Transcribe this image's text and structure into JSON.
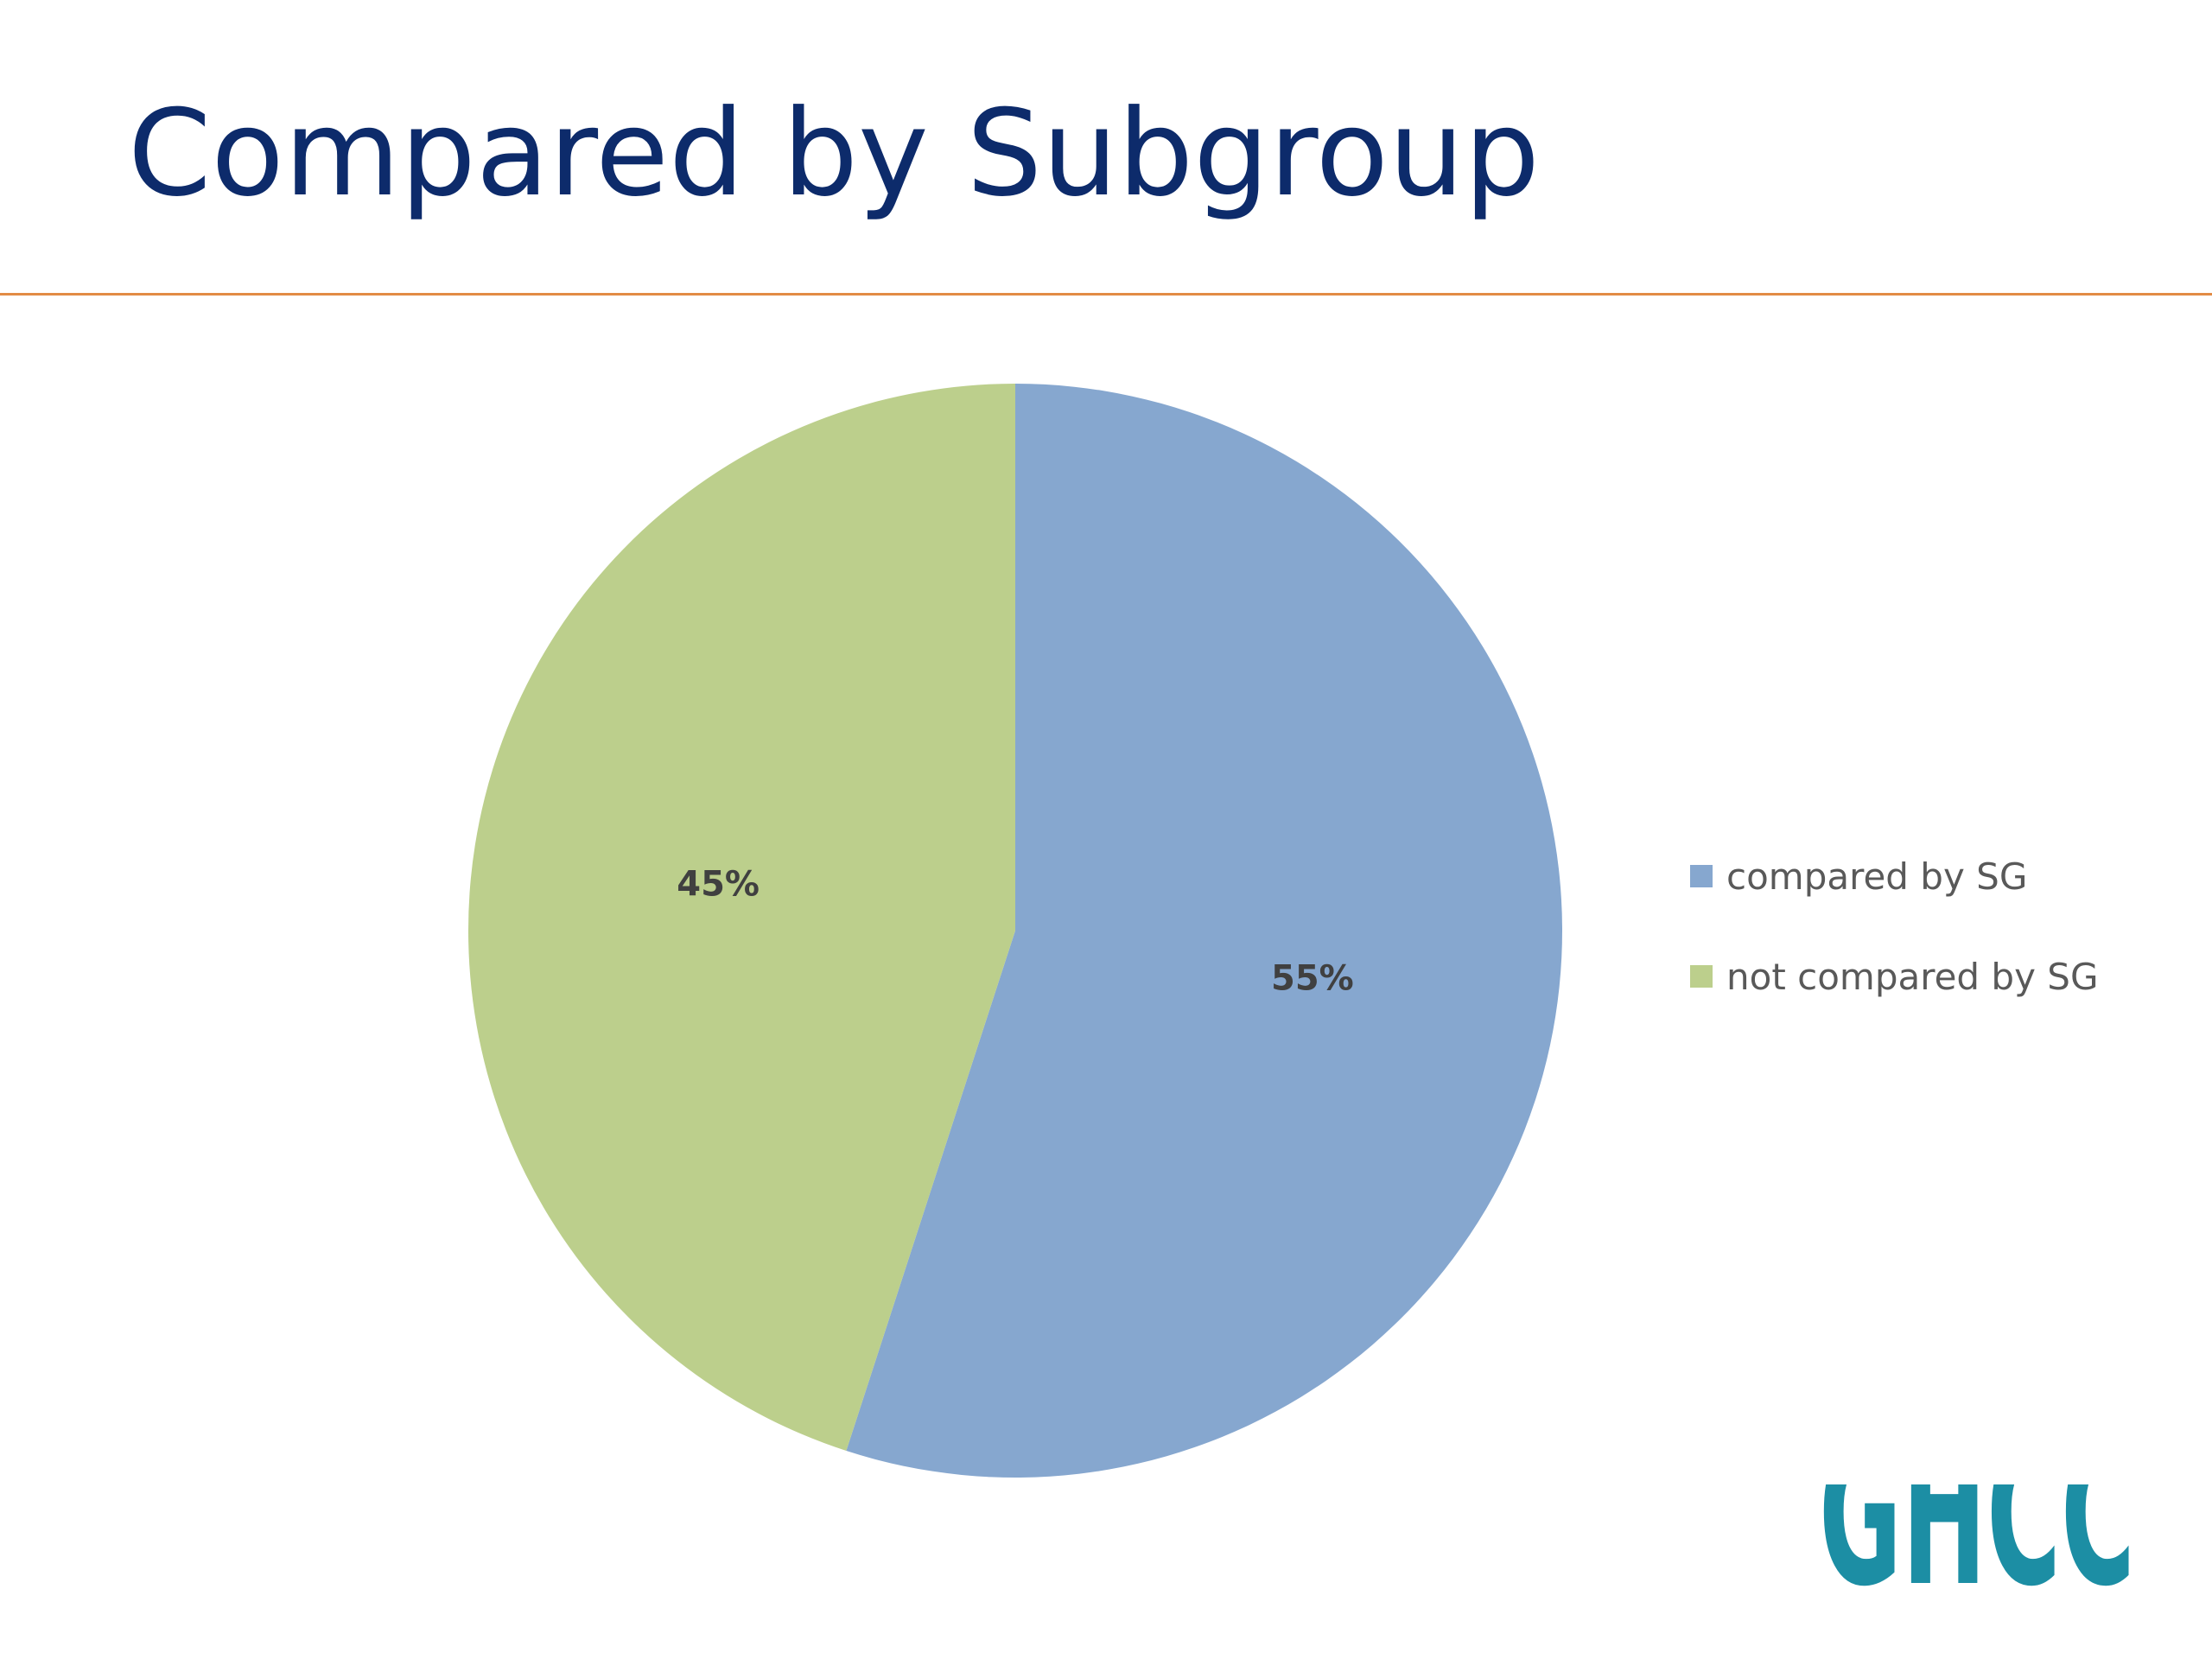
{
  "title": "Compared by Subgroup",
  "colors": {
    "title": "#0d2b6b",
    "rule": "#e28b45",
    "compared": "#86a7cf",
    "not_compared": "#bccf8c",
    "logo": "#1c8ea4"
  },
  "chart_data": {
    "type": "pie",
    "title": "",
    "slices": [
      {
        "label": "compared by SG",
        "value": 55,
        "display": "55%",
        "color": "#86a7cf"
      },
      {
        "label": "not compared by SG",
        "value": 45,
        "display": "45%",
        "color": "#bccf8c"
      }
    ],
    "start_angle": "12 o'clock",
    "direction": "clockwise",
    "legend_position": "right"
  },
  "legend": {
    "items": [
      {
        "label": "compared by SG",
        "color": "#86a7cf"
      },
      {
        "label": "not compared by SG",
        "color": "#bccf8c"
      }
    ]
  },
  "logo": {
    "text": "GHCC",
    "icon": "ghcc-logo"
  }
}
